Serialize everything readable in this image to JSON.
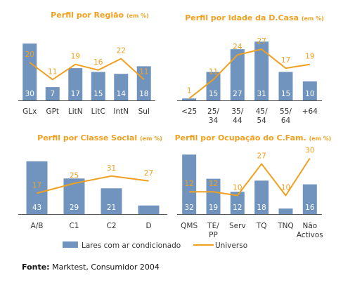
{
  "chart_data": [
    {
      "type": "bar",
      "title": "Perfil por Região",
      "title_unit": "(em %)",
      "categories": [
        "GLx",
        "GPt",
        "LitN",
        "LitC",
        "IntN",
        "Sul"
      ],
      "series": [
        {
          "name": "Lares com ar condicionado",
          "kind": "bar",
          "values": [
            30,
            7,
            17,
            15,
            14,
            18
          ]
        },
        {
          "name": "Universo",
          "kind": "line",
          "values": [
            20,
            11,
            19,
            16,
            22,
            11
          ]
        }
      ]
    },
    {
      "type": "bar",
      "title": "Perfil por Idade da D.Casa",
      "title_unit": "(em %)",
      "categories": [
        "<25",
        "25/ 34",
        "35/ 44",
        "45/ 54",
        "55/ 64",
        "+64"
      ],
      "series": [
        {
          "name": "Lares com ar condicionado",
          "kind": "bar",
          "values": [
            1,
            15,
            27,
            31,
            15,
            10
          ]
        },
        {
          "name": "Universo",
          "kind": "line",
          "values": [
            1,
            11,
            24,
            27,
            17,
            19
          ]
        }
      ]
    },
    {
      "type": "bar",
      "title": "Perfil por Classe Social",
      "title_unit": "(em %)",
      "categories": [
        "A/B",
        "C1",
        "C2",
        "D"
      ],
      "series": [
        {
          "name": "Lares com ar condicionado",
          "kind": "bar",
          "values": [
            43,
            29,
            21,
            7
          ]
        },
        {
          "name": "Universo",
          "kind": "line",
          "values": [
            17,
            25,
            31,
            27
          ]
        }
      ]
    },
    {
      "type": "bar",
      "title": "Perfil por Ocupação do C.Fam.",
      "title_unit": "(em %)",
      "categories": [
        "QMS",
        "TE/ PP",
        "Serv",
        "TQ",
        "TNQ",
        "Não Activos"
      ],
      "series": [
        {
          "name": "Lares com ar condicionado",
          "kind": "bar",
          "values": [
            32,
            19,
            12,
            18,
            3,
            16
          ]
        },
        {
          "name": "Universo",
          "kind": "line",
          "values": [
            12,
            12,
            10,
            27,
            10,
            30
          ]
        }
      ]
    }
  ],
  "legend": {
    "bar_label": "Lares com ar condicionado",
    "line_label": "Universo"
  },
  "colors": {
    "bar": "#7094bd",
    "line": "#f0a020",
    "bar_label": "#ffffff",
    "line_label": "#f0a020",
    "axis": "#555555"
  },
  "source": {
    "label": "Fonte:",
    "text": " Marktest, Consumidor 2004"
  }
}
